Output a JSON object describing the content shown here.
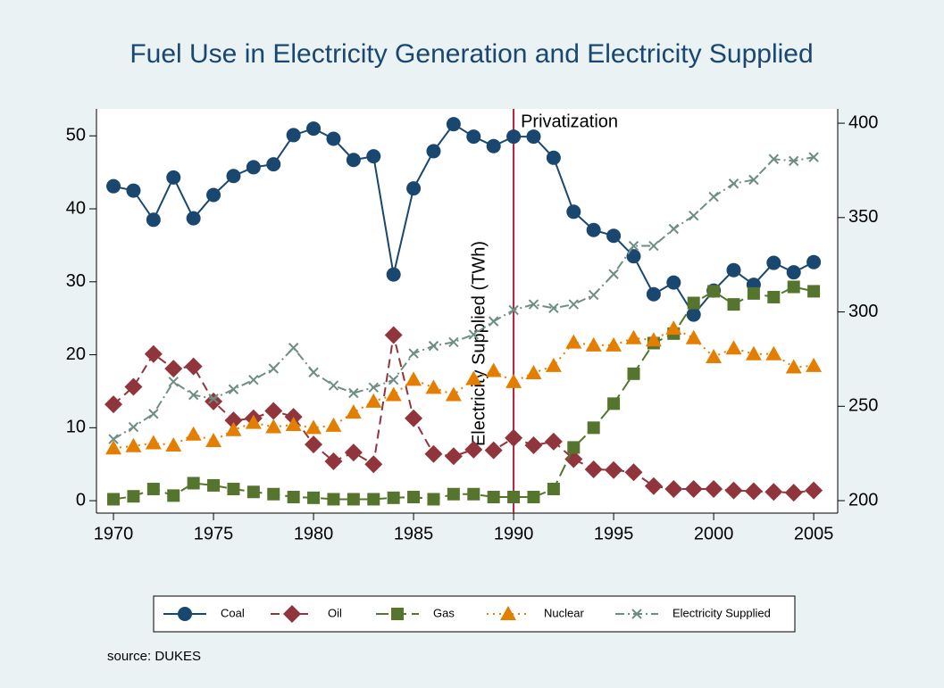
{
  "chart_data": {
    "type": "line",
    "title": "Fuel Use in Electricity Generation and Electricity Supplied",
    "y2label": "Electricity Supplied (TWh)",
    "note": "source: DUKES",
    "x": [
      1970,
      1971,
      1972,
      1973,
      1974,
      1975,
      1976,
      1977,
      1978,
      1979,
      1980,
      1981,
      1982,
      1983,
      1984,
      1985,
      1986,
      1987,
      1988,
      1989,
      1990,
      1991,
      1992,
      1993,
      1994,
      1995,
      1996,
      1997,
      1998,
      1999,
      2000,
      2001,
      2002,
      2003,
      2004,
      2005
    ],
    "xlim": [
      1969.15,
      2006.2
    ],
    "xticks": [
      1970,
      1975,
      1980,
      1985,
      1990,
      1995,
      2000,
      2005
    ],
    "ylim": [
      -1.7,
      53.7
    ],
    "yticks": [
      0,
      10,
      20,
      30,
      40,
      50
    ],
    "y2lim": [
      193.4,
      407.6
    ],
    "y2ticks": [
      200,
      250,
      300,
      350,
      400
    ],
    "annotations": [
      {
        "x": 1990,
        "label": "Privatization",
        "color": "#b0203a"
      }
    ],
    "series": [
      {
        "name": "Coal",
        "color": "#1a476f",
        "marker": "circle",
        "line_style": "solid",
        "values": [
          43.1,
          42.5,
          38.5,
          44.3,
          38.7,
          41.9,
          44.5,
          45.7,
          46.1,
          50.1,
          51,
          49.6,
          46.7,
          47.2,
          31,
          42.8,
          47.9,
          51.6,
          49.9,
          48.6,
          49.9,
          49.9,
          47,
          39.6,
          37.1,
          36.3,
          33.5,
          28.3,
          29.9,
          25.5,
          28.8,
          31.6,
          29.6,
          32.6,
          31.3,
          32.7
        ]
      },
      {
        "name": "Oil",
        "color": "#90353b",
        "marker": "diamond",
        "line_style": "dash",
        "values": [
          13.2,
          15.6,
          20.1,
          18.1,
          18.4,
          13.6,
          11,
          11.3,
          12.3,
          11.5,
          7.7,
          5.4,
          6.6,
          5,
          22.7,
          11.3,
          6.4,
          6.1,
          7,
          6.9,
          8.6,
          7.6,
          8.1,
          5.7,
          4.3,
          4.2,
          3.9,
          2,
          1.6,
          1.6,
          1.6,
          1.4,
          1.3,
          1.2,
          1.1,
          1.4
        ]
      },
      {
        "name": "Gas",
        "color": "#55752f",
        "marker": "square",
        "line_style": "longdash",
        "values": [
          0.2,
          0.6,
          1.6,
          0.7,
          2.4,
          2.1,
          1.6,
          1.2,
          0.9,
          0.5,
          0.4,
          0.2,
          0.2,
          0.2,
          0.4,
          0.5,
          0.2,
          0.9,
          0.9,
          0.5,
          0.5,
          0.5,
          1.6,
          7.3,
          10,
          13.3,
          17.4,
          21.6,
          22.9,
          27.1,
          28.7,
          26.9,
          28.4,
          27.9,
          29.3,
          28.7
        ]
      },
      {
        "name": "Nuclear",
        "color": "#e37e00",
        "marker": "triangle",
        "line_style": "dot",
        "values": [
          7.2,
          7.5,
          7.9,
          7.6,
          9.1,
          8.2,
          9.7,
          10.7,
          10.1,
          10.4,
          10,
          10.3,
          12.1,
          13.6,
          14.5,
          16.6,
          15.5,
          14.5,
          16.7,
          17.8,
          16.3,
          17.5,
          18.5,
          21.7,
          21.3,
          21.3,
          22.3,
          22,
          23.6,
          22.3,
          19.7,
          20.9,
          20.1,
          20.1,
          18.3,
          18.5
        ]
      },
      {
        "name": "Electricity Supplied",
        "color": "#6e8e84",
        "marker": "x",
        "line_style": "dashdot",
        "axis": "y2",
        "values": [
          232.6,
          239,
          246,
          263,
          256,
          254,
          259,
          264,
          270,
          281,
          268,
          261,
          257,
          260,
          264,
          278,
          282,
          284,
          288,
          295,
          301,
          304,
          302,
          304,
          309,
          320,
          335,
          335,
          344,
          351,
          361,
          368,
          370,
          381,
          380,
          382
        ]
      }
    ]
  }
}
